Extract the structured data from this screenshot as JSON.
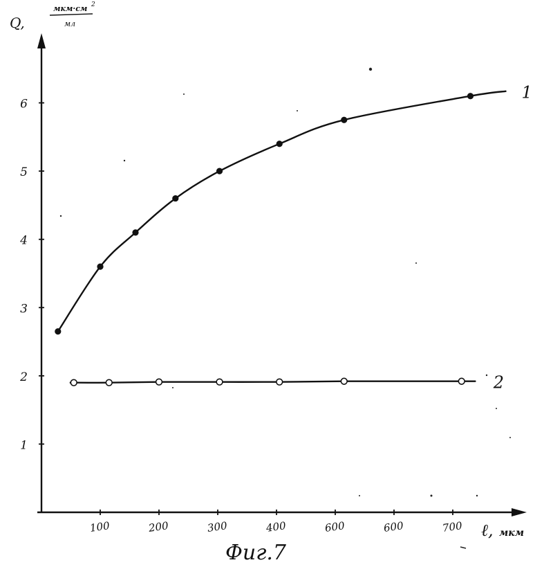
{
  "chart_data": {
    "type": "line",
    "ylabel": "Q, мкм·см²/мл",
    "ylabel_symbol": "Q,",
    "ylabel_unit_numerator": "мкм·см",
    "ylabel_unit_exponent": "2",
    "ylabel_unit_denominator": "мл",
    "xlabel": "ℓ, мкм",
    "xlabel_symbol": "ℓ,",
    "xlabel_unit": "мкм",
    "caption": "Фиг.7",
    "xlim": [
      0,
      800
    ],
    "ylim": [
      0,
      7
    ],
    "x_tick_labels": [
      "100",
      "200",
      "300",
      "400",
      "600",
      "600",
      "700"
    ],
    "y_tick_labels": [
      "1",
      "2",
      "3",
      "4",
      "5",
      "6"
    ],
    "grid": false,
    "series": [
      {
        "name": "1",
        "marker": "filled",
        "color": "#111111",
        "x": [
          28,
          100,
          160,
          228,
          303,
          405,
          515,
          730
        ],
        "y": [
          2.65,
          3.6,
          4.1,
          4.6,
          5.0,
          5.4,
          5.75,
          6.1
        ]
      },
      {
        "name": "2",
        "marker": "open",
        "color": "#111111",
        "x": [
          55,
          115,
          200,
          303,
          405,
          515,
          715
        ],
        "y": [
          1.9,
          1.9,
          1.91,
          1.91,
          1.91,
          1.92,
          1.92
        ]
      }
    ]
  }
}
